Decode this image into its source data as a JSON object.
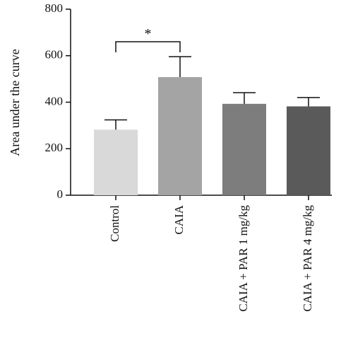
{
  "chart_data": {
    "type": "bar",
    "categories": [
      "Control",
      "CAIA",
      "CAIA + PAR 1 mg/kg",
      "CAIA + PAR 4 mg/kg"
    ],
    "values": [
      282,
      508,
      393,
      382
    ],
    "errors": [
      42,
      88,
      48,
      38
    ],
    "colors": [
      "#d9d9d9",
      "#a4a4a4",
      "#7d7d7d",
      "#5a5a5a"
    ],
    "title": "",
    "xlabel": "",
    "ylabel": "Area under the curve",
    "ylim": [
      0,
      800
    ],
    "yticks": [
      0,
      200,
      400,
      600,
      800
    ],
    "grid": false,
    "significance": [
      {
        "from": 0,
        "to": 1,
        "label": "*",
        "y": 660
      }
    ]
  }
}
